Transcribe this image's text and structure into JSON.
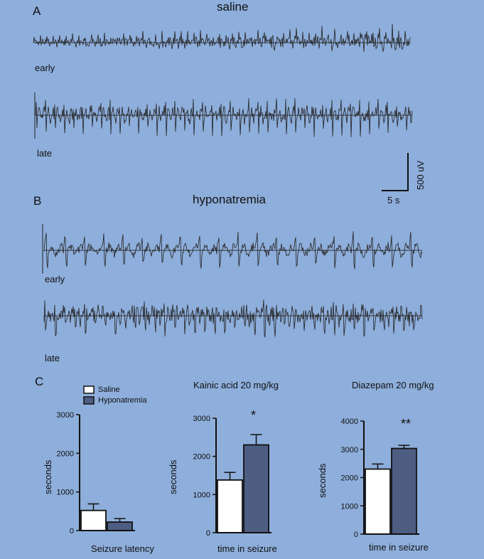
{
  "panels": {
    "A": {
      "letter": "A",
      "title": "saline",
      "early_label": "early",
      "late_label": "late"
    },
    "B": {
      "letter": "B",
      "title": "hyponatremia",
      "early_label": "early",
      "late_label": "late"
    },
    "C": {
      "letter": "C"
    }
  },
  "scalebar": {
    "vertical": "500 uV",
    "horizontal": "5 s"
  },
  "legend": {
    "items": [
      {
        "label": "Saline",
        "color": "#ffffff"
      },
      {
        "label": "Hyponatremia",
        "color": "#4d5e82"
      }
    ]
  },
  "colors": {
    "background": "#8eaedb",
    "saline": "#ffffff",
    "hyponatremia": "#4d5e82",
    "trace": "#222222"
  },
  "chart_data": [
    {
      "type": "bar",
      "title": "",
      "xlabel": "Seizure latency",
      "ylabel": "seconds",
      "ylim": [
        0,
        3000
      ],
      "yticks": [
        0,
        1000,
        2000,
        3000
      ],
      "series": [
        {
          "name": "Saline",
          "values": [
            520
          ],
          "error": [
            170
          ]
        },
        {
          "name": "Hyponatremia",
          "values": [
            220
          ],
          "error": [
            90
          ]
        }
      ],
      "annotation": ""
    },
    {
      "type": "bar",
      "title": "Kainic acid 20 mg/kg",
      "xlabel": "time in seizure",
      "ylabel": "seconds",
      "ylim": [
        0,
        3000
      ],
      "yticks": [
        0,
        1000,
        2000,
        3000
      ],
      "series": [
        {
          "name": "Saline",
          "values": [
            1380
          ],
          "error": [
            200
          ]
        },
        {
          "name": "Hyponatremia",
          "values": [
            2300
          ],
          "error": [
            270
          ]
        }
      ],
      "annotation": "*"
    },
    {
      "type": "bar",
      "title": "Diazepam 20 mg/kg",
      "xlabel": "time in seizure",
      "ylabel": "seconds",
      "ylim": [
        0,
        4000
      ],
      "yticks": [
        0,
        1000,
        2000,
        3000,
        4000
      ],
      "series": [
        {
          "name": "Saline",
          "values": [
            2300
          ],
          "error": [
            180
          ]
        },
        {
          "name": "Hyponatremia",
          "values": [
            3030
          ],
          "error": [
            110
          ]
        }
      ],
      "annotation": "**"
    }
  ]
}
